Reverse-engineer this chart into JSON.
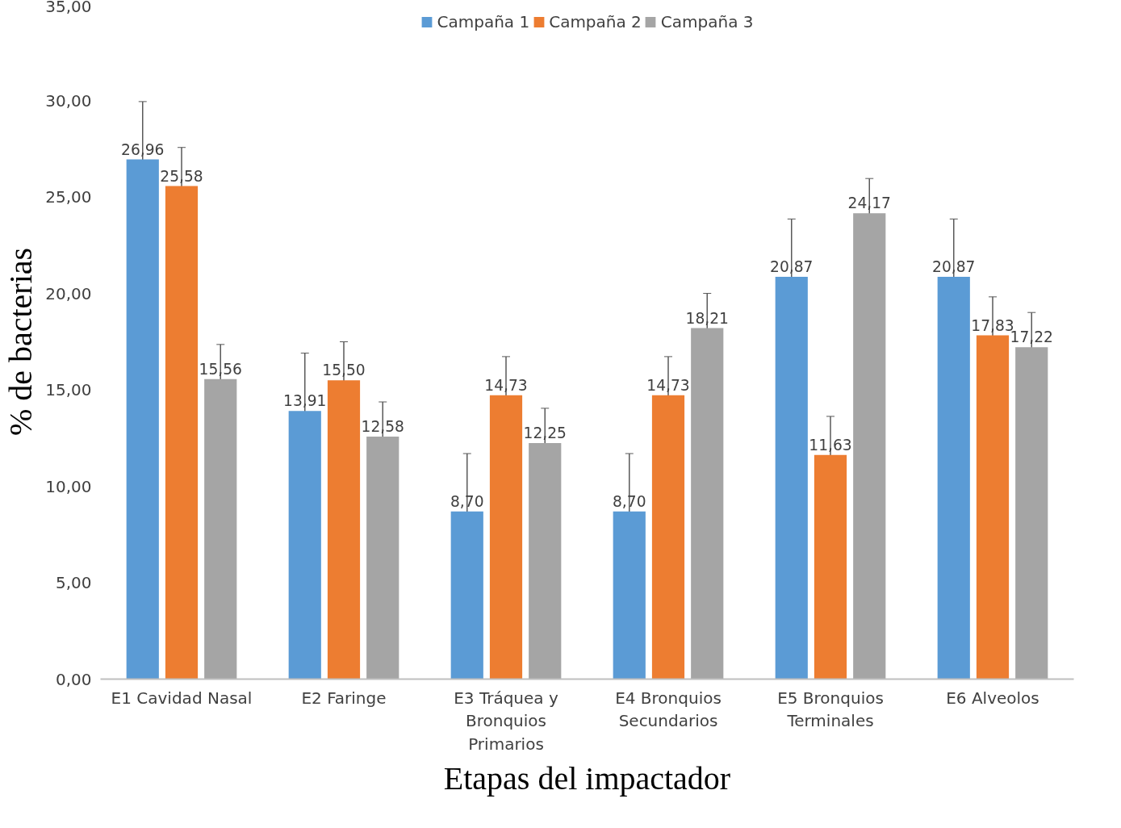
{
  "chart_data": {
    "type": "bar",
    "xlabel": "Etapas del impactador",
    "ylabel": "% de bacterias",
    "categories": [
      "E1 Cavidad Nasal",
      "E2 Faringe",
      "E3 Tráquea y\nBronquios\nPrimarios",
      "E4 Bronquios\nSecundarios",
      "E5 Bronquios\nTerminales",
      "E6 Alveolos"
    ],
    "series": [
      {
        "name": "Campaña 1",
        "color": "#5b9bd5",
        "values": [
          26.96,
          13.91,
          8.7,
          8.7,
          20.87,
          20.87
        ],
        "errors": [
          3,
          3,
          3,
          3,
          3,
          3
        ],
        "value_labels": [
          "26,96",
          "13,91",
          "8,70",
          "8,70",
          "20,87",
          "20,87"
        ]
      },
      {
        "name": "Campaña 2",
        "color": "#ed7d31",
        "values": [
          25.58,
          15.5,
          14.73,
          14.73,
          11.63,
          17.83
        ],
        "errors": [
          2,
          2,
          2,
          2,
          2,
          2
        ],
        "value_labels": [
          "25,58",
          "15,50",
          "14,73",
          "14,73",
          "11,63",
          "17,83"
        ]
      },
      {
        "name": "Campaña 3",
        "color": "#a5a5a5",
        "values": [
          15.56,
          12.58,
          12.25,
          18.21,
          24.17,
          17.22
        ],
        "errors": [
          1.8,
          1.8,
          1.8,
          1.8,
          1.8,
          1.8
        ],
        "value_labels": [
          "15,56",
          "12,58",
          "12,25",
          "18,21",
          "24,17",
          "17,22"
        ]
      }
    ],
    "ylim": [
      0,
      35
    ],
    "yticks": [
      {
        "value": 0,
        "label": "0,00"
      },
      {
        "value": 5,
        "label": "5,00"
      },
      {
        "value": 10,
        "label": "10,00"
      },
      {
        "value": 15,
        "label": "15,00"
      },
      {
        "value": 20,
        "label": "20,00"
      },
      {
        "value": 25,
        "label": "25,00"
      },
      {
        "value": 30,
        "label": "30,00"
      },
      {
        "value": 35,
        "label": "35,00"
      }
    ],
    "grid": false,
    "legend": "top"
  }
}
